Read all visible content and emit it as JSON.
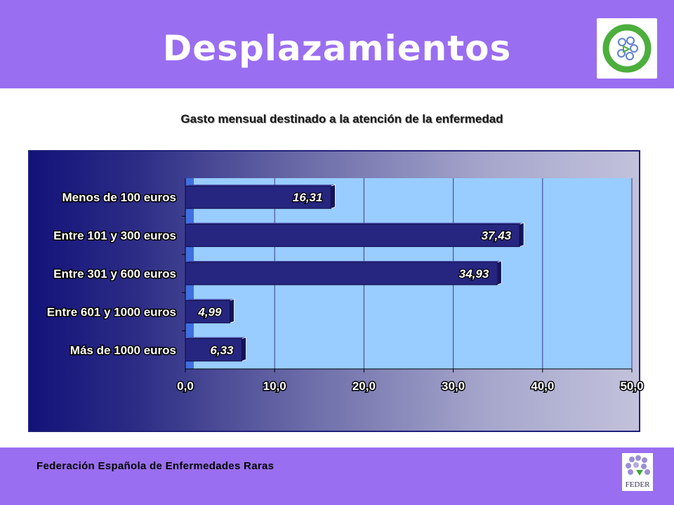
{
  "header": {
    "title": "Desplazamientos",
    "logo_icon": "enfermedades-raras-apoyo-logo"
  },
  "footer": {
    "text": "Federación Española de Enfermedades Raras",
    "logo_icon": "feder-logo",
    "logo_text": "FEDER"
  },
  "colors": {
    "header_bg": "#9a6ef0",
    "plot_bg": "#99ccff",
    "bar": "#262680"
  },
  "chart_data": {
    "type": "bar",
    "orientation": "horizontal",
    "title": "Gasto mensual destinado a la atención de la enfermedad",
    "categories": [
      "Menos de 100 euros",
      "Entre 101 y 300 euros",
      "Entre 301 y 600 euros",
      "Entre 601 y 1000 euros",
      "Más de 1000 euros"
    ],
    "values": [
      16.31,
      37.43,
      34.93,
      4.99,
      6.33
    ],
    "value_labels": [
      "16,31",
      "37,43",
      "34,93",
      "4,99",
      "6,33"
    ],
    "xlim": [
      0,
      50
    ],
    "xticks": [
      "0,0",
      "10,0",
      "20,0",
      "30,0",
      "40,0",
      "50,0"
    ],
    "grid": true,
    "legend": "none"
  }
}
